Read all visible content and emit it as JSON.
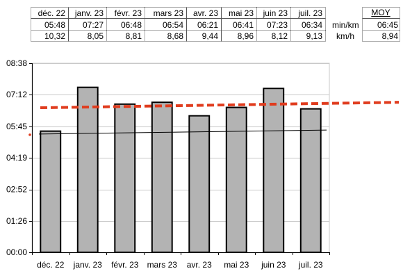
{
  "table": {
    "months": [
      "déc. 22",
      "janv. 23",
      "févr. 23",
      "mars 23",
      "avr. 23",
      "mai 23",
      "juin 23",
      "juil. 23"
    ],
    "pace": [
      "05:48",
      "07:27",
      "06:48",
      "06:54",
      "06:21",
      "06:41",
      "07:23",
      "06:34"
    ],
    "speed": [
      "10,32",
      "8,05",
      "8,81",
      "8,68",
      "9,44",
      "8,96",
      "8,12",
      "9,13"
    ],
    "unit_pace": "min/km",
    "unit_speed": "km/h",
    "avg_header": "MOY",
    "avg_pace": "06:45",
    "avg_speed": "8,94"
  },
  "chart_data": {
    "type": "bar",
    "categories": [
      "déc. 22",
      "janv. 23",
      "févr. 23",
      "mars 23",
      "avr. 23",
      "mai 23",
      "juin 23",
      "juil. 23"
    ],
    "values": [
      "05:32",
      "07:32",
      "06:46",
      "06:51",
      "06:14",
      "06:37",
      "07:29",
      "06:33"
    ],
    "y_ticks": [
      "00:00",
      "01:26",
      "02:52",
      "04:19",
      "05:45",
      "07:12",
      "08:38"
    ],
    "ylim": [
      "00:00",
      "08:38"
    ],
    "grid": true,
    "reference_lines": [
      {
        "style": "dashed",
        "color": "#e03c1e",
        "from": "06:36",
        "to": "06:51"
      },
      {
        "style": "thin",
        "color": "#000000",
        "from": "05:24",
        "to": "05:35"
      }
    ],
    "colors": {
      "bar_fill": "#b3b3b3",
      "bar_stroke": "#000000",
      "trend": "#e03c1e",
      "grid": "#c8c8c8"
    }
  }
}
